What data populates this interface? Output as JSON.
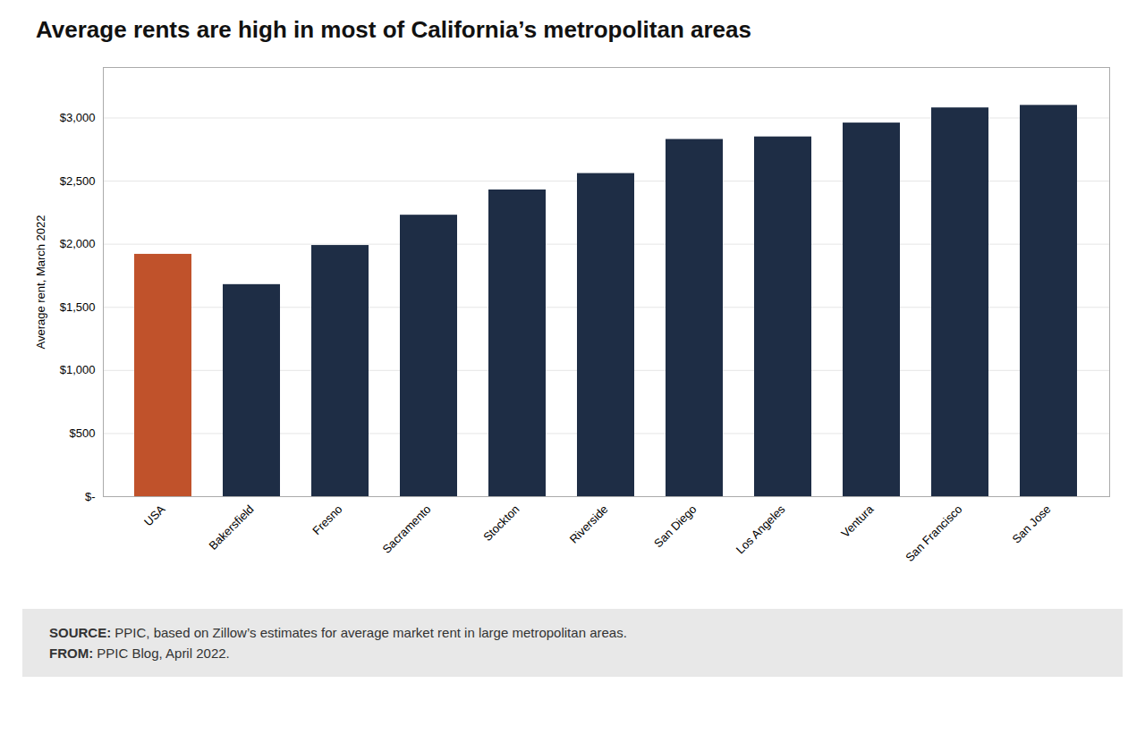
{
  "chart_data": {
    "type": "bar",
    "title": "Average rents are high in most of California’s metropolitan areas",
    "ylabel": "Average rent, March 2022",
    "categories": [
      "USA",
      "Bakersfield",
      "Fresno",
      "Sacramento",
      "Stockton",
      "Riverside",
      "San Diego",
      "Los Angeles",
      "Ventura",
      "San Francisco",
      "San Jose"
    ],
    "values": [
      1920,
      1680,
      1990,
      2230,
      2430,
      2560,
      2830,
      2850,
      2960,
      3080,
      3100
    ],
    "colors": [
      "#c0522b",
      "#1e2d45",
      "#1e2d45",
      "#1e2d45",
      "#1e2d45",
      "#1e2d45",
      "#1e2d45",
      "#1e2d45",
      "#1e2d45",
      "#1e2d45",
      "#1e2d45"
    ],
    "ylim": [
      0,
      3400
    ],
    "yticks": [
      {
        "value": 0,
        "label": "$-"
      },
      {
        "value": 500,
        "label": "$500"
      },
      {
        "value": 1000,
        "label": "$1,000"
      },
      {
        "value": 1500,
        "label": "$1,500"
      },
      {
        "value": 2000,
        "label": "$2,000"
      },
      {
        "value": 2500,
        "label": "$2,500"
      },
      {
        "value": 3000,
        "label": "$3,000"
      }
    ],
    "grid": true,
    "annotations": [
      {
        "label": "SOURCE:",
        "text": "PPIC, based on Zillow’s estimates for average market rent in large metropolitan areas."
      },
      {
        "label": "FROM:",
        "text": "PPIC Blog, April 2022."
      }
    ]
  }
}
